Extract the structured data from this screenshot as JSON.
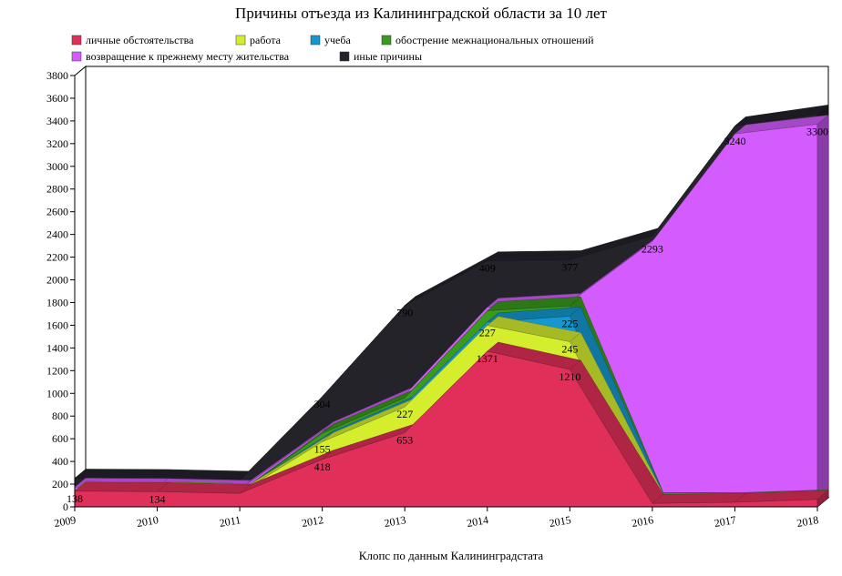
{
  "chart_data": {
    "type": "area",
    "stacked": true,
    "three_d": true,
    "title": "Причины отъезда из Калининградской области за 10 лет",
    "footer": "Клопс по данным Калининградстата",
    "xlabel": "",
    "ylabel": "",
    "ylim": [
      0,
      3800
    ],
    "yticks": [
      0,
      200,
      400,
      600,
      800,
      1000,
      1200,
      1400,
      1600,
      1800,
      2000,
      2200,
      2400,
      2600,
      2800,
      3000,
      3200,
      3400,
      3600,
      3800
    ],
    "categories": [
      "2009",
      "2010",
      "2011",
      "2012",
      "2013",
      "2014",
      "2015",
      "2016",
      "2017",
      "2018"
    ],
    "grid": false,
    "legend_position": "top",
    "series": [
      {
        "name": "личные обстоятельства",
        "color": "#e0305a",
        "values": [
          138,
          134,
          118,
          418,
          653,
          1371,
          1210,
          30,
          40,
          65
        ]
      },
      {
        "name": "работа",
        "color": "#d4ee2e",
        "values": [
          5,
          5,
          5,
          155,
          227,
          227,
          245,
          5,
          2,
          2
        ]
      },
      {
        "name": "учеба",
        "color": "#1597d0",
        "values": [
          0,
          0,
          0,
          15,
          20,
          30,
          225,
          5,
          2,
          2
        ]
      },
      {
        "name": "обострение межнациональных отношений",
        "color": "#3a9a1c",
        "values": [
          0,
          0,
          0,
          60,
          60,
          100,
          90,
          5,
          2,
          2
        ]
      },
      {
        "name": "возвращение к прежнему месту жительства",
        "color": "#d45cff",
        "values": [
          30,
          30,
          30,
          20,
          25,
          30,
          30,
          2293,
          3240,
          3300
        ]
      },
      {
        "name": "иные причины",
        "color": "#24232a",
        "values": [
          80,
          80,
          80,
          304,
          790,
          409,
          377,
          50,
          70,
          90
        ]
      }
    ],
    "data_labels": [
      {
        "series": 0,
        "index": 0,
        "text": "138"
      },
      {
        "series": 0,
        "index": 1,
        "text": "134"
      },
      {
        "series": 0,
        "index": 3,
        "text": "418"
      },
      {
        "series": 0,
        "index": 4,
        "text": "653"
      },
      {
        "series": 0,
        "index": 5,
        "text": "1371"
      },
      {
        "series": 0,
        "index": 6,
        "text": "1210"
      },
      {
        "series": 1,
        "index": 3,
        "text": "155"
      },
      {
        "series": 1,
        "index": 4,
        "text": "227"
      },
      {
        "series": 1,
        "index": 5,
        "text": "227"
      },
      {
        "series": 1,
        "index": 6,
        "text": "245"
      },
      {
        "series": 2,
        "index": 6,
        "text": "225"
      },
      {
        "series": 4,
        "index": 7,
        "text": "2293"
      },
      {
        "series": 4,
        "index": 8,
        "text": "3240"
      },
      {
        "series": 4,
        "index": 9,
        "text": "3300"
      },
      {
        "series": 5,
        "index": 3,
        "text": "304"
      },
      {
        "series": 5,
        "index": 4,
        "text": "790"
      },
      {
        "series": 5,
        "index": 5,
        "text": "409"
      },
      {
        "series": 5,
        "index": 6,
        "text": "377"
      }
    ]
  }
}
